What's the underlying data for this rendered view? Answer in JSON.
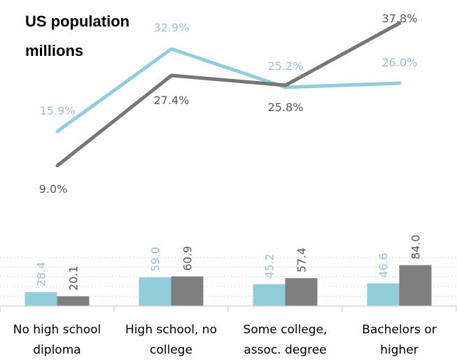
{
  "chart_data": {
    "type": "bar",
    "title": "US population",
    "subtitle": "millions",
    "categories": [
      [
        "No high school",
        "diploma"
      ],
      [
        "High school, no",
        "college"
      ],
      [
        "Some college,",
        "assoc. degree"
      ],
      [
        "Bachelors or",
        "higher"
      ]
    ],
    "series": [
      {
        "type": "bar",
        "values": [
          28.4,
          59.0,
          45.2,
          46.6
        ],
        "labels": [
          "28.4",
          "59.0",
          "45.2",
          "46.6"
        ],
        "color": "#92cddc"
      },
      {
        "type": "bar",
        "values": [
          20.1,
          60.9,
          57.4,
          84.0
        ],
        "labels": [
          "20.1",
          "60.9",
          "57.4",
          "84.0"
        ],
        "color": "#7f7f7f"
      },
      {
        "type": "line",
        "values": [
          15.9,
          32.9,
          25.2,
          26.0
        ],
        "labels": [
          "15.9%",
          "32.9%",
          "25.2%",
          "26.0%"
        ],
        "color": "#92cddc"
      },
      {
        "type": "line",
        "values": [
          9.0,
          27.4,
          25.8,
          37.8
        ],
        "labels": [
          "9.0%",
          "27.4%",
          "25.8%",
          "37.8%"
        ],
        "color": "#767676"
      }
    ],
    "ylim": [
      0,
      100
    ],
    "grid": true
  }
}
